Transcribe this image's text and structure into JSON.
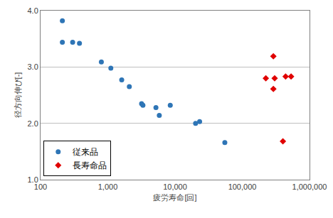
{
  "chart_data": {
    "type": "scatter",
    "x_label": "疲労寿命[回]",
    "y_label": "径方向伸び[-]",
    "log": "x",
    "grid": true,
    "legend": "bottom-left",
    "xlim": [
      100,
      1000000
    ],
    "xticks": [
      100,
      {
        "value": 1000,
        "label": "1,000"
      },
      {
        "value": 10000,
        "label": "10,000"
      },
      {
        "value": 100000,
        "label": "100,000"
      },
      {
        "value": 1000000,
        "label": "1,000,000"
      }
    ],
    "ylim": [
      1,
      4
    ],
    "yticks": [
      {
        "value": 1,
        "label": "1.0"
      },
      {
        "value": 2,
        "label": "2.0"
      },
      {
        "value": 3,
        "label": "3.0"
      },
      {
        "value": 4,
        "label": "4.0"
      }
    ],
    "series": [
      {
        "name": "従来品",
        "color": "#2e75b6",
        "marker": "circle",
        "x": [
          211,
          211,
          300,
          379,
          802,
          1110,
          1610,
          2090,
          3180,
          3330,
          5200,
          5830,
          8490,
          20200,
          23200,
          55000
        ],
        "values": [
          3.82,
          3.44,
          3.44,
          3.42,
          3.09,
          2.98,
          2.77,
          2.65,
          2.35,
          2.32,
          2.28,
          2.14,
          2.32,
          2.0,
          2.03,
          1.66
        ]
      },
      {
        "name": "長寿命品",
        "color": "#e00000",
        "marker": "diamond",
        "x": [
          224000,
          290000,
          303000,
          290000,
          402000,
          441000,
          532000
        ],
        "values": [
          2.8,
          3.19,
          2.8,
          2.61,
          1.68,
          2.83,
          2.83
        ]
      }
    ]
  }
}
